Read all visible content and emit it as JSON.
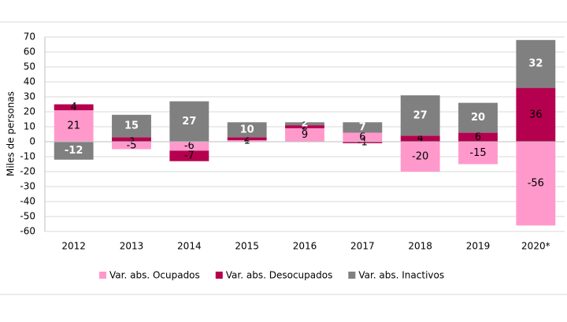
{
  "chart_data": {
    "type": "stacked_bar",
    "y_label": "Miles de personas",
    "categories": [
      "2012",
      "2013",
      "2014",
      "2015",
      "2016",
      "2017",
      "2018",
      "2019",
      "2020*"
    ],
    "series": [
      {
        "name": "Var. abs. Ocupados",
        "color": "#ff99cc",
        "values": [
          21,
          -5,
          -6,
          1,
          9,
          6,
          -20,
          -15,
          -56
        ]
      },
      {
        "name": "Var. abs. Desocupados",
        "color": "#b5004f",
        "values": [
          4,
          3,
          -7,
          2,
          2,
          -1,
          4,
          6,
          36
        ]
      },
      {
        "name": "Var. abs. Inactivos",
        "color": "#808080",
        "values": [
          -12,
          15,
          27,
          10,
          2,
          7,
          27,
          20,
          32
        ]
      }
    ],
    "ylim": [
      -60,
      70
    ],
    "yticks": [
      -60,
      -50,
      -40,
      -30,
      -20,
      -10,
      0,
      10,
      20,
      30,
      40,
      50,
      60,
      70
    ],
    "grid": true,
    "legend": "bottom"
  }
}
